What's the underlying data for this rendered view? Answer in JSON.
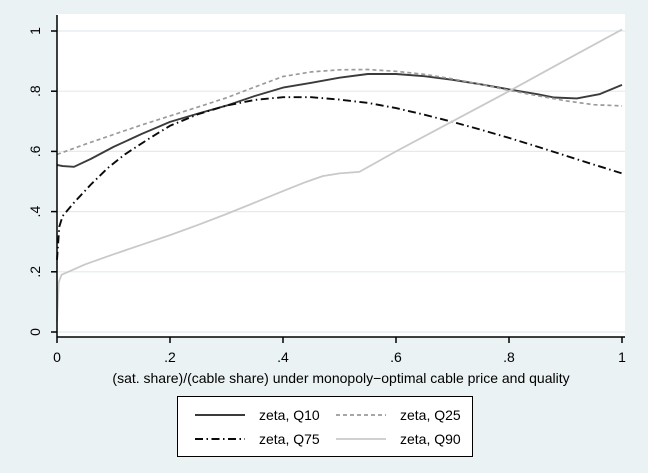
{
  "figure": {
    "background_color": "#eaf2f3",
    "plot_background_color": "#ffffff",
    "gridline_color": "#e2ebee",
    "axis_color": "#000000"
  },
  "chart_data": {
    "type": "line",
    "title": "",
    "xlabel": "(sat. share)/(cable share) under monopoly−optimal cable price and quality",
    "ylabel": "",
    "xlim": [
      0,
      1
    ],
    "ylim": [
      0,
      1.01
    ],
    "grid": "horizontal",
    "x_ticks": {
      "values": [
        0,
        0.2,
        0.4,
        0.6,
        0.8,
        1
      ],
      "labels": [
        "0",
        ".2",
        ".4",
        ".6",
        ".8",
        "1"
      ]
    },
    "y_ticks": {
      "values": [
        0,
        0.2,
        0.4,
        0.6,
        0.8,
        1
      ],
      "labels": [
        "0",
        ".2",
        ".4",
        ".6",
        ".8",
        "1"
      ],
      "label_rotation": -90
    },
    "legend": {
      "position": "bottom-center",
      "columns": 2,
      "border": true
    },
    "series": [
      {
        "name": "zeta, Q10",
        "style": "solid",
        "color": "#3b3b3b",
        "width": 1.9,
        "points": [
          [
            0,
            0.555
          ],
          [
            0.01,
            0.551
          ],
          [
            0.03,
            0.549
          ],
          [
            0.06,
            0.575
          ],
          [
            0.1,
            0.615
          ],
          [
            0.15,
            0.658
          ],
          [
            0.2,
            0.698
          ],
          [
            0.25,
            0.726
          ],
          [
            0.3,
            0.752
          ],
          [
            0.35,
            0.784
          ],
          [
            0.4,
            0.812
          ],
          [
            0.45,
            0.828
          ],
          [
            0.5,
            0.845
          ],
          [
            0.55,
            0.857
          ],
          [
            0.6,
            0.857
          ],
          [
            0.65,
            0.85
          ],
          [
            0.7,
            0.838
          ],
          [
            0.75,
            0.823
          ],
          [
            0.8,
            0.806
          ],
          [
            0.85,
            0.79
          ],
          [
            0.88,
            0.779
          ],
          [
            0.92,
            0.776
          ],
          [
            0.96,
            0.79
          ],
          [
            1.0,
            0.821
          ]
        ]
      },
      {
        "name": "zeta, Q25",
        "style": "dash",
        "color": "#9b9b9b",
        "width": 1.7,
        "points": [
          [
            0,
            0.59
          ],
          [
            0.05,
            0.624
          ],
          [
            0.1,
            0.656
          ],
          [
            0.15,
            0.688
          ],
          [
            0.2,
            0.718
          ],
          [
            0.25,
            0.748
          ],
          [
            0.3,
            0.778
          ],
          [
            0.35,
            0.814
          ],
          [
            0.4,
            0.849
          ],
          [
            0.45,
            0.864
          ],
          [
            0.5,
            0.871
          ],
          [
            0.55,
            0.872
          ],
          [
            0.6,
            0.866
          ],
          [
            0.65,
            0.856
          ],
          [
            0.7,
            0.841
          ],
          [
            0.75,
            0.823
          ],
          [
            0.8,
            0.803
          ],
          [
            0.85,
            0.785
          ],
          [
            0.9,
            0.768
          ],
          [
            0.95,
            0.755
          ],
          [
            1.0,
            0.751
          ]
        ]
      },
      {
        "name": "zeta, Q75",
        "style": "dashdot",
        "color": "#0a0a0a",
        "width": 1.9,
        "points": [
          [
            0,
            0.24
          ],
          [
            0.004,
            0.35
          ],
          [
            0.01,
            0.385
          ],
          [
            0.03,
            0.43
          ],
          [
            0.06,
            0.49
          ],
          [
            0.09,
            0.545
          ],
          [
            0.12,
            0.59
          ],
          [
            0.165,
            0.645
          ],
          [
            0.2,
            0.685
          ],
          [
            0.25,
            0.724
          ],
          [
            0.3,
            0.752
          ],
          [
            0.35,
            0.771
          ],
          [
            0.4,
            0.78
          ],
          [
            0.45,
            0.78
          ],
          [
            0.5,
            0.772
          ],
          [
            0.55,
            0.761
          ],
          [
            0.6,
            0.744
          ],
          [
            0.65,
            0.722
          ],
          [
            0.7,
            0.698
          ],
          [
            0.75,
            0.672
          ],
          [
            0.8,
            0.645
          ],
          [
            0.85,
            0.616
          ],
          [
            0.9,
            0.586
          ],
          [
            0.95,
            0.556
          ],
          [
            1.0,
            0.527
          ]
        ]
      },
      {
        "name": "zeta, Q90",
        "style": "solid",
        "color": "#c9c9c9",
        "width": 1.8,
        "points": [
          [
            0,
            0.035
          ],
          [
            0.003,
            0.165
          ],
          [
            0.008,
            0.19
          ],
          [
            0.05,
            0.225
          ],
          [
            0.1,
            0.258
          ],
          [
            0.15,
            0.29
          ],
          [
            0.2,
            0.322
          ],
          [
            0.25,
            0.356
          ],
          [
            0.3,
            0.392
          ],
          [
            0.35,
            0.43
          ],
          [
            0.4,
            0.468
          ],
          [
            0.44,
            0.498
          ],
          [
            0.47,
            0.518
          ],
          [
            0.5,
            0.527
          ],
          [
            0.535,
            0.532
          ],
          [
            0.6,
            0.6
          ],
          [
            0.7,
            0.7
          ],
          [
            0.8,
            0.8
          ],
          [
            0.9,
            0.903
          ],
          [
            1.0,
            1.005
          ]
        ]
      }
    ]
  }
}
